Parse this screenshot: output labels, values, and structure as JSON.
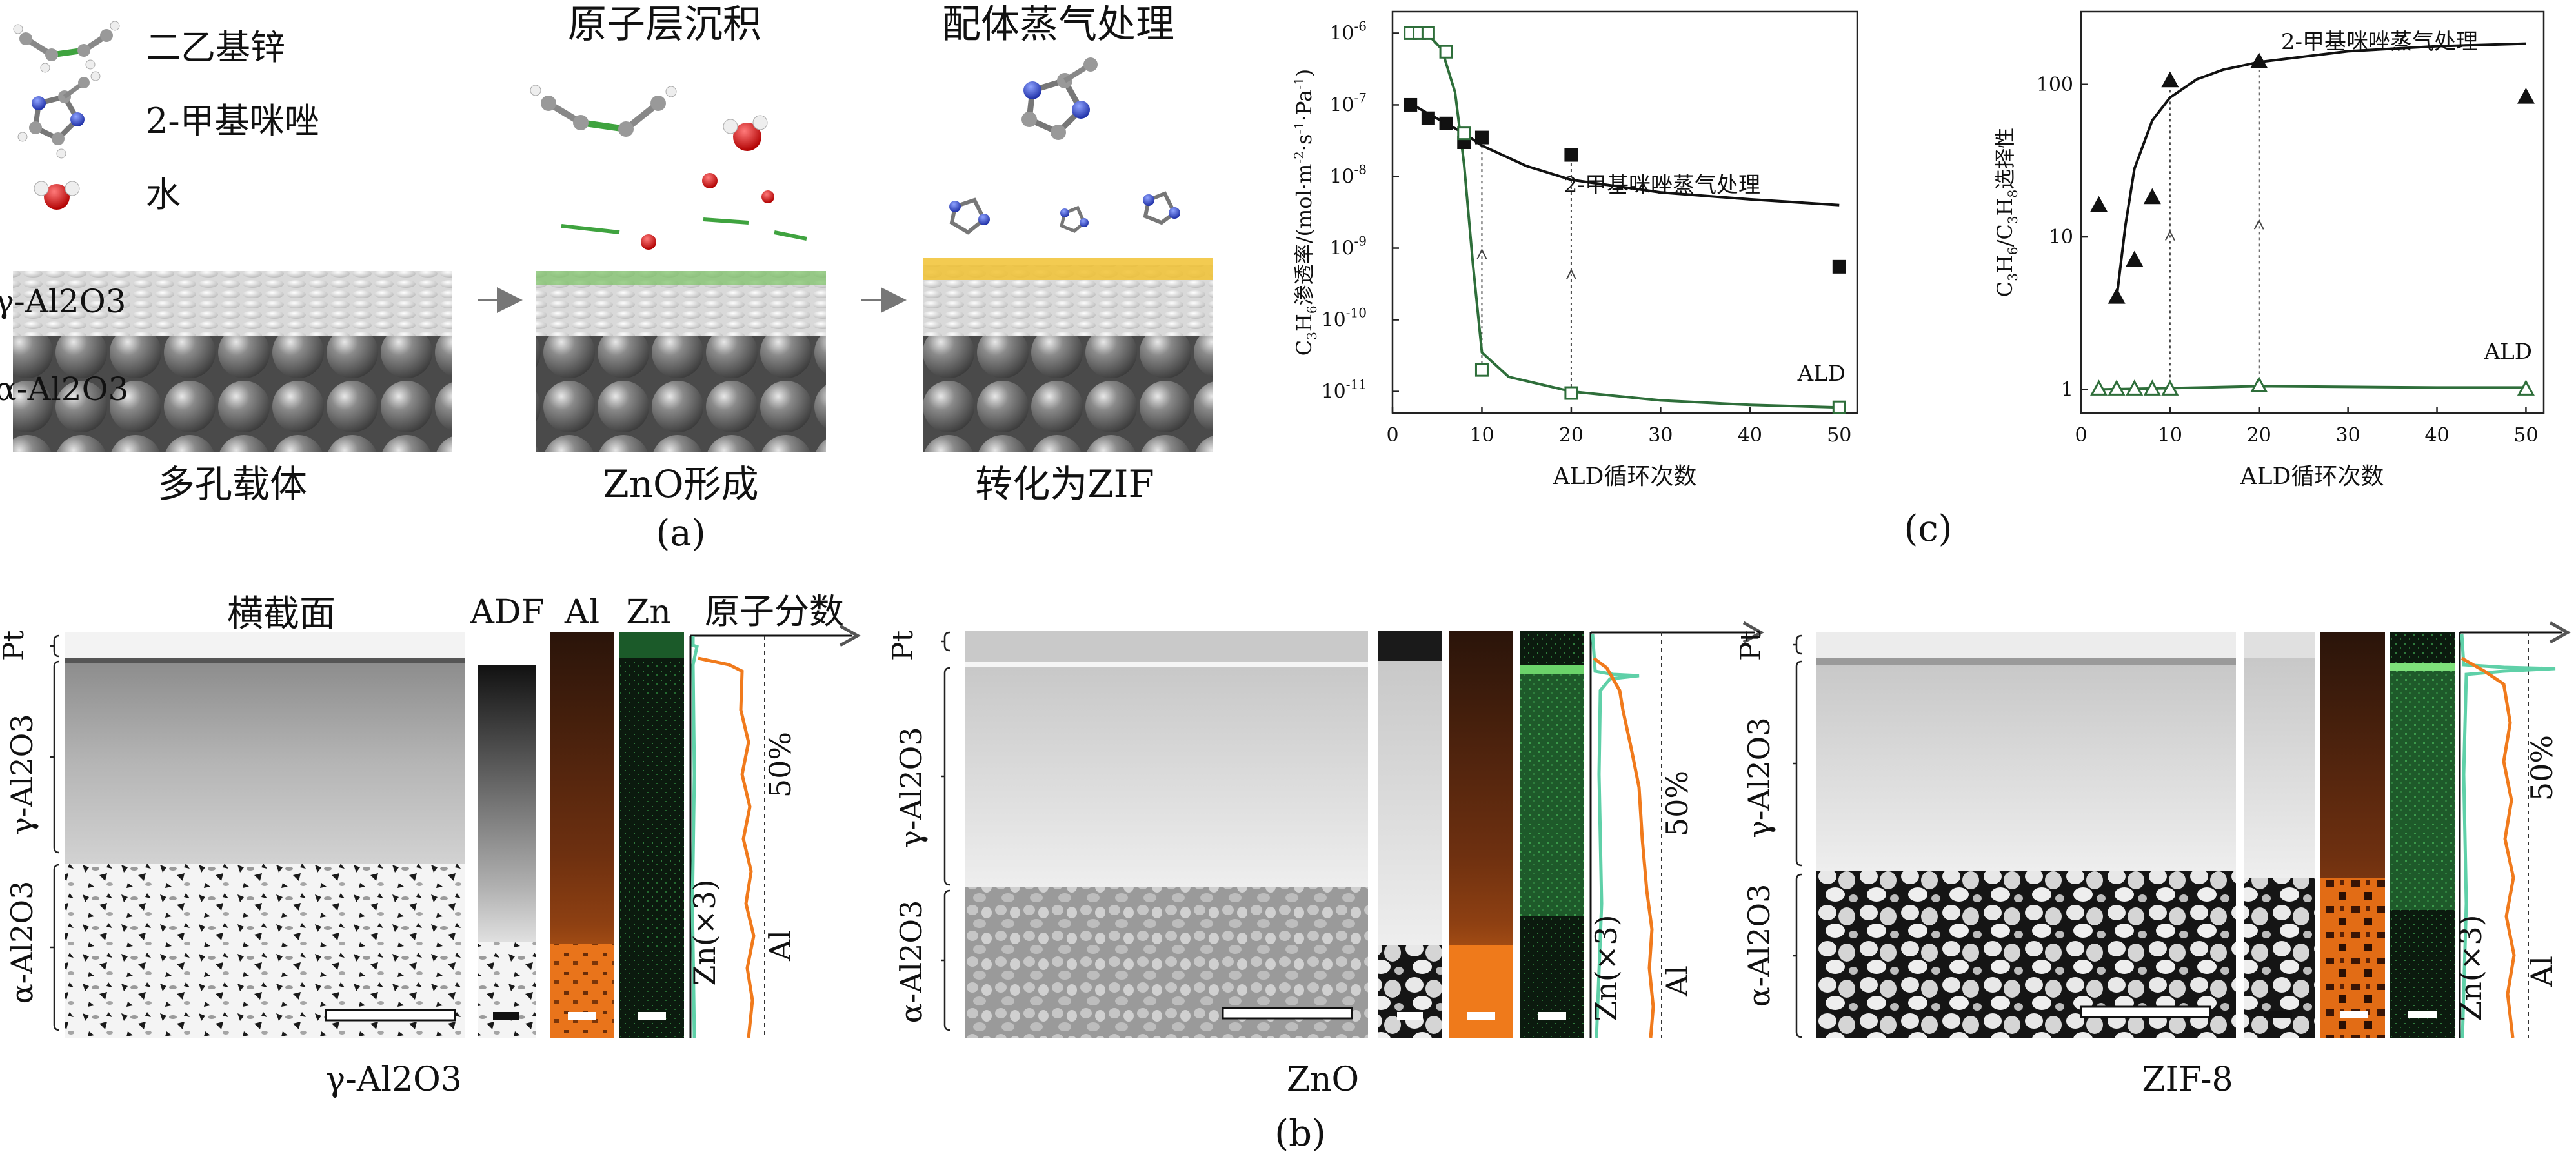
{
  "panel_a": {
    "legend": {
      "diethylzinc": "二乙基锌",
      "methylimidazole": "2-甲基咪唑",
      "water": "水"
    },
    "steps": {
      "ald": "原子层沉积",
      "ligand_vapor": "配体蒸气处理"
    },
    "layers": {
      "gamma": "γ-Al2O3",
      "alpha": "α-Al2O3"
    },
    "captions": {
      "support": "多孔载体",
      "zno": "ZnO形成",
      "zif": "转化为ZIF"
    },
    "label": "(a)"
  },
  "panel_b": {
    "label": "(b)",
    "cross_section_title": "横截面",
    "column_labels": {
      "adf": "ADF",
      "al": "Al",
      "zn": "Zn",
      "fraction": "原子分数"
    },
    "percent_label": "50%",
    "zn_trace_label": "Zn(×3)",
    "al_trace_label": "Al",
    "side_labels": {
      "pt": "Pt",
      "gamma": "γ-Al2O3",
      "alpha": "α-Al2O3"
    },
    "samples": [
      {
        "caption": "γ-Al2O3"
      },
      {
        "caption": "ZnO"
      },
      {
        "caption": "ZIF-8"
      }
    ]
  },
  "panel_c": {
    "label": "(c)",
    "colors": {
      "vapor": "#111111",
      "ald": "#2e6e3a"
    }
  },
  "chart_data": [
    {
      "type": "scatter",
      "title": "",
      "xlabel": "ALD循环次数",
      "ylabel": "C3H6渗透率/(mol·m-2·s-1·Pa-1)",
      "xlim": [
        0,
        52
      ],
      "ylim": [
        5e-12,
        2e-06
      ],
      "yscale": "log",
      "xticks": [
        0,
        10,
        20,
        30,
        40,
        50
      ],
      "yticks": [
        {
          "v": 1e-11,
          "exp": "-11"
        },
        {
          "v": 1e-10,
          "exp": "-10"
        },
        {
          "v": 1e-09,
          "exp": "-9"
        },
        {
          "v": 1e-08,
          "exp": "-8"
        },
        {
          "v": 1e-07,
          "exp": "-7"
        },
        {
          "v": 1e-06,
          "exp": "-6"
        }
      ],
      "series": [
        {
          "name": "2-甲基咪唑蒸气处理",
          "marker": "square-filled",
          "x": [
            2,
            4,
            6,
            8,
            10,
            20,
            50
          ],
          "y": [
            1e-07,
            6.5e-08,
            5.5e-08,
            3e-08,
            3.5e-08,
            2e-08,
            5.5e-10
          ],
          "fit_x": [
            2,
            4,
            6,
            8,
            10,
            15,
            20,
            30,
            40,
            50
          ],
          "fit_y": [
            1.05e-07,
            7.5e-08,
            5.5e-08,
            4e-08,
            2.7e-08,
            1.4e-08,
            9e-09,
            6e-09,
            4.8e-09,
            4e-09
          ]
        },
        {
          "name": "ALD",
          "marker": "square-open",
          "x": [
            2,
            3,
            4,
            6,
            8,
            10,
            20,
            50
          ],
          "y": [
            1e-06,
            1e-06,
            1e-06,
            5.5e-07,
            4e-08,
            2e-11,
            9.5e-12,
            6e-12
          ],
          "fit_x": [
            2,
            4,
            5.5,
            7,
            8,
            9,
            10,
            13,
            20,
            30,
            40,
            50
          ],
          "fit_y": [
            1e-06,
            9.5e-07,
            6e-07,
            1.5e-07,
            1.5e-08,
            6e-10,
            3.5e-11,
            1.6e-11,
            1e-11,
            7.5e-12,
            6.5e-12,
            6e-12
          ]
        }
      ],
      "guides_x": [
        10,
        20
      ]
    },
    {
      "type": "scatter",
      "title": "",
      "xlabel": "ALD循环次数",
      "ylabel": "C3H6/C3H8选择性",
      "xlim": [
        0,
        52
      ],
      "ylim": [
        0.7,
        300
      ],
      "yscale": "log",
      "xticks": [
        0,
        10,
        20,
        30,
        40,
        50
      ],
      "yticks": [
        {
          "v": 1,
          "t": "1"
        },
        {
          "v": 10,
          "t": "10"
        },
        {
          "v": 100,
          "t": "100"
        }
      ],
      "series": [
        {
          "name": "2-甲基咪唑蒸气处理",
          "marker": "triangle-filled",
          "x": [
            2,
            4,
            6,
            8,
            10,
            20,
            50
          ],
          "y": [
            16,
            4,
            7,
            18,
            105,
            140,
            82
          ],
          "fit_x": [
            4,
            5,
            6,
            8,
            10,
            13,
            16,
            20,
            30,
            40,
            50
          ],
          "fit_y": [
            4,
            12,
            28,
            58,
            82,
            108,
            125,
            140,
            165,
            178,
            185
          ]
        },
        {
          "name": "ALD",
          "marker": "triangle-open",
          "x": [
            2,
            4,
            6,
            8,
            10,
            20,
            50
          ],
          "y": [
            1,
            1,
            1,
            1,
            1,
            1.05,
            1
          ],
          "fit_x": [
            2,
            10,
            20,
            30,
            40,
            50
          ],
          "fit_y": [
            1,
            1.02,
            1.05,
            1.04,
            1.03,
            1.03
          ]
        }
      ],
      "guides_x": [
        10,
        20
      ]
    }
  ]
}
